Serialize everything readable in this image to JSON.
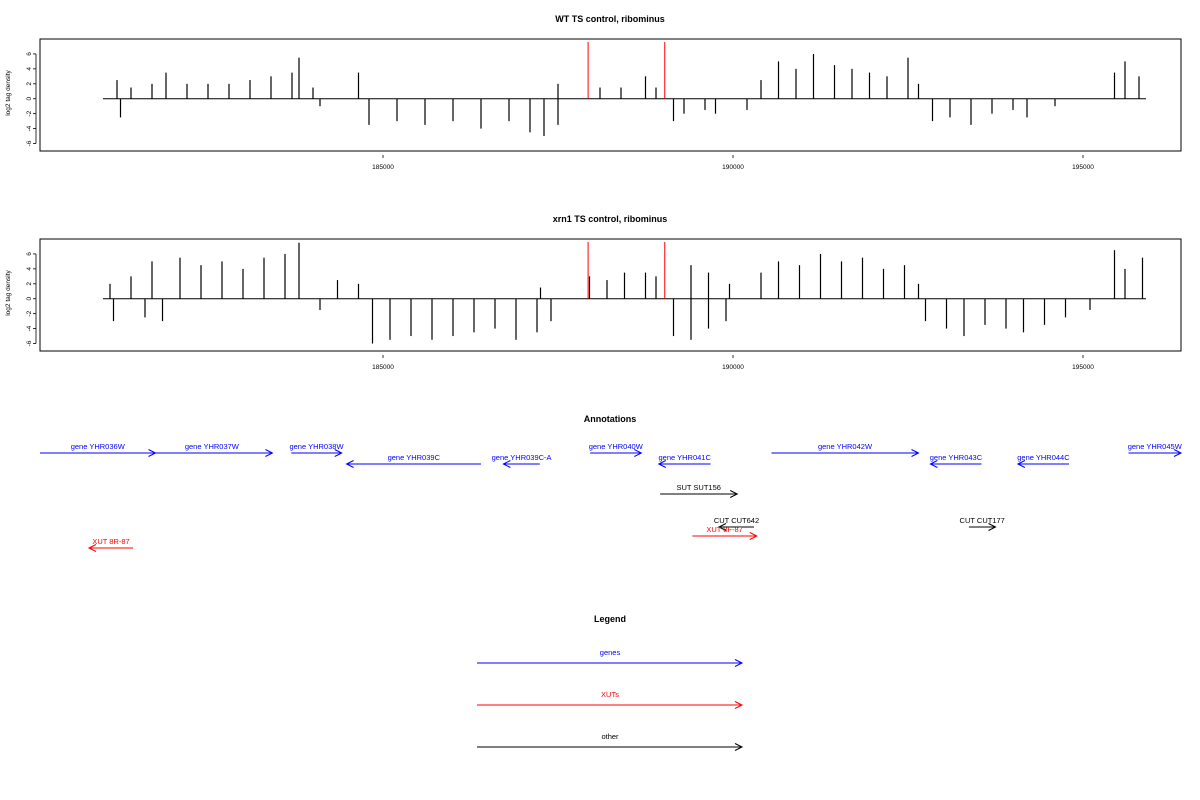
{
  "chart_data": [
    {
      "type": "bar",
      "title": "WT TS control, ribominus",
      "ylabel": "log2 tag density",
      "ylim": [
        -7,
        8
      ],
      "xlim": [
        180100,
        196400
      ],
      "y_ticks": [
        -6,
        -4,
        -2,
        0,
        2,
        4,
        6
      ],
      "x_ticks": [
        185000,
        190000,
        195000
      ],
      "x_tick_labels": [
        "185000",
        "190000",
        "195000"
      ],
      "grid": false,
      "bar_color": "#000000",
      "markers": [
        {
          "x": 187930,
          "color": "#ff0000"
        },
        {
          "x": 189025,
          "color": "#ff0000"
        }
      ],
      "series": [
        {
          "values": [
            {
              "x": 181200,
              "y": 2.5
            },
            {
              "x": 181400,
              "y": 1.5
            },
            {
              "x": 181700,
              "y": 2.0
            },
            {
              "x": 181900,
              "y": 3.5
            },
            {
              "x": 182200,
              "y": 2.0
            },
            {
              "x": 182500,
              "y": 2.0
            },
            {
              "x": 182800,
              "y": 2.0
            },
            {
              "x": 183100,
              "y": 2.5
            },
            {
              "x": 183400,
              "y": 3.0
            },
            {
              "x": 183700,
              "y": 3.5
            },
            {
              "x": 183800,
              "y": 5.5
            },
            {
              "x": 184000,
              "y": 1.5
            },
            {
              "x": 184650,
              "y": 3.5
            },
            {
              "x": 181250,
              "y": -2.5
            },
            {
              "x": 184100,
              "y": -1.0
            },
            {
              "x": 184800,
              "y": -3.5
            },
            {
              "x": 185200,
              "y": -3.0
            },
            {
              "x": 185600,
              "y": -3.5
            },
            {
              "x": 186000,
              "y": -3.0
            },
            {
              "x": 186400,
              "y": -4.0
            },
            {
              "x": 186800,
              "y": -3.0
            },
            {
              "x": 187100,
              "y": -4.5
            },
            {
              "x": 187300,
              "y": -5.0
            },
            {
              "x": 187500,
              "y": -3.5
            },
            {
              "x": 187500,
              "y": 2.0
            },
            {
              "x": 188100,
              "y": 1.5
            },
            {
              "x": 188400,
              "y": 1.5
            },
            {
              "x": 188750,
              "y": 3.0
            },
            {
              "x": 188900,
              "y": 1.5
            },
            {
              "x": 189150,
              "y": -3.0
            },
            {
              "x": 189300,
              "y": -2.0
            },
            {
              "x": 189600,
              "y": -1.5
            },
            {
              "x": 189750,
              "y": -2.0
            },
            {
              "x": 190200,
              "y": -1.5
            },
            {
              "x": 190400,
              "y": 2.5
            },
            {
              "x": 190650,
              "y": 5.0
            },
            {
              "x": 190900,
              "y": 4.0
            },
            {
              "x": 191150,
              "y": 6.0
            },
            {
              "x": 191450,
              "y": 4.5
            },
            {
              "x": 191700,
              "y": 4.0
            },
            {
              "x": 191950,
              "y": 3.5
            },
            {
              "x": 192200,
              "y": 3.0
            },
            {
              "x": 192500,
              "y": 5.5
            },
            {
              "x": 192650,
              "y": 2.0
            },
            {
              "x": 192850,
              "y": -3.0
            },
            {
              "x": 193100,
              "y": -2.5
            },
            {
              "x": 193400,
              "y": -3.5
            },
            {
              "x": 193700,
              "y": -2.0
            },
            {
              "x": 194000,
              "y": -1.5
            },
            {
              "x": 194200,
              "y": -2.5
            },
            {
              "x": 194600,
              "y": -1.0
            },
            {
              "x": 195450,
              "y": 3.5
            },
            {
              "x": 195600,
              "y": 5.0
            },
            {
              "x": 195800,
              "y": 3.0
            }
          ]
        }
      ]
    },
    {
      "type": "bar",
      "title": "xrn1 TS control, ribominus",
      "ylabel": "log2 tag density",
      "ylim": [
        -7,
        8
      ],
      "xlim": [
        180100,
        196400
      ],
      "y_ticks": [
        -6,
        -4,
        -2,
        0,
        2,
        4,
        6
      ],
      "x_ticks": [
        185000,
        190000,
        195000
      ],
      "x_tick_labels": [
        "185000",
        "190000",
        "195000"
      ],
      "grid": false,
      "bar_color": "#000000",
      "markers": [
        {
          "x": 187930,
          "color": "#ff0000"
        },
        {
          "x": 189025,
          "color": "#ff0000"
        }
      ],
      "series": [
        {
          "values": [
            {
              "x": 181100,
              "y": 2.0
            },
            {
              "x": 181400,
              "y": 3.0
            },
            {
              "x": 181700,
              "y": 5.0
            },
            {
              "x": 182100,
              "y": 5.5
            },
            {
              "x": 182400,
              "y": 4.5
            },
            {
              "x": 182700,
              "y": 5.0
            },
            {
              "x": 183000,
              "y": 4.0
            },
            {
              "x": 183300,
              "y": 5.5
            },
            {
              "x": 183600,
              "y": 6.0
            },
            {
              "x": 183800,
              "y": 7.5
            },
            {
              "x": 184350,
              "y": 2.5
            },
            {
              "x": 184650,
              "y": 2.0
            },
            {
              "x": 181150,
              "y": -3.0
            },
            {
              "x": 181600,
              "y": -2.5
            },
            {
              "x": 181850,
              "y": -3.0
            },
            {
              "x": 184100,
              "y": -1.5
            },
            {
              "x": 184850,
              "y": -6.0
            },
            {
              "x": 185100,
              "y": -5.5
            },
            {
              "x": 185400,
              "y": -5.0
            },
            {
              "x": 185700,
              "y": -5.5
            },
            {
              "x": 186000,
              "y": -5.0
            },
            {
              "x": 186300,
              "y": -4.5
            },
            {
              "x": 186600,
              "y": -4.0
            },
            {
              "x": 186900,
              "y": -5.5
            },
            {
              "x": 187200,
              "y": -4.5
            },
            {
              "x": 187400,
              "y": -3.0
            },
            {
              "x": 187250,
              "y": 1.5
            },
            {
              "x": 187950,
              "y": 3.0
            },
            {
              "x": 188200,
              "y": 2.5
            },
            {
              "x": 188450,
              "y": 3.5
            },
            {
              "x": 188750,
              "y": 3.5
            },
            {
              "x": 188900,
              "y": 3.0
            },
            {
              "x": 189150,
              "y": -5.0
            },
            {
              "x": 189400,
              "y": -5.5
            },
            {
              "x": 189650,
              "y": -4.0
            },
            {
              "x": 189900,
              "y": -3.0
            },
            {
              "x": 189400,
              "y": 4.5
            },
            {
              "x": 189650,
              "y": 3.5
            },
            {
              "x": 189950,
              "y": 2.0
            },
            {
              "x": 190400,
              "y": 3.5
            },
            {
              "x": 190650,
              "y": 5.0
            },
            {
              "x": 190950,
              "y": 4.5
            },
            {
              "x": 191250,
              "y": 6.0
            },
            {
              "x": 191550,
              "y": 5.0
            },
            {
              "x": 191850,
              "y": 5.5
            },
            {
              "x": 192150,
              "y": 4.0
            },
            {
              "x": 192450,
              "y": 4.5
            },
            {
              "x": 192650,
              "y": 2.0
            },
            {
              "x": 192750,
              "y": -3.0
            },
            {
              "x": 193050,
              "y": -4.0
            },
            {
              "x": 193300,
              "y": -5.0
            },
            {
              "x": 193600,
              "y": -3.5
            },
            {
              "x": 193900,
              "y": -4.0
            },
            {
              "x": 194150,
              "y": -4.5
            },
            {
              "x": 194450,
              "y": -3.5
            },
            {
              "x": 194750,
              "y": -2.5
            },
            {
              "x": 195100,
              "y": -1.5
            },
            {
              "x": 195450,
              "y": 6.5
            },
            {
              "x": 195600,
              "y": 4.0
            },
            {
              "x": 195850,
              "y": 5.5
            }
          ]
        }
      ]
    }
  ],
  "annotations": {
    "title": "Annotations",
    "features": [
      {
        "label": "gene YHR036W",
        "start": 180100,
        "end": 181750,
        "strand": "+",
        "row": 0,
        "color": "#0000ff"
      },
      {
        "label": "gene YHR037W",
        "start": 181690,
        "end": 183420,
        "strand": "+",
        "row": 0,
        "color": "#0000ff"
      },
      {
        "label": "gene YHR038W",
        "start": 183690,
        "end": 184410,
        "strand": "+",
        "row": 0,
        "color": "#0000ff"
      },
      {
        "label": "gene YHR039C",
        "start": 184480,
        "end": 186400,
        "strand": "-",
        "row": 1,
        "color": "#0000ff"
      },
      {
        "label": "gene YHR039C-A",
        "start": 186720,
        "end": 187240,
        "strand": "-",
        "row": 1,
        "color": "#0000ff"
      },
      {
        "label": "gene YHR040W",
        "start": 187960,
        "end": 188690,
        "strand": "+",
        "row": 0,
        "color": "#0000ff"
      },
      {
        "label": "gene YHR041C",
        "start": 188940,
        "end": 189680,
        "strand": "-",
        "row": 1,
        "color": "#0000ff"
      },
      {
        "label": "gene YHR042W",
        "start": 190550,
        "end": 192650,
        "strand": "+",
        "row": 0,
        "color": "#0000ff"
      },
      {
        "label": "gene YHR043C",
        "start": 192820,
        "end": 193550,
        "strand": "-",
        "row": 1,
        "color": "#0000ff"
      },
      {
        "label": "gene YHR044C",
        "start": 194070,
        "end": 194800,
        "strand": "-",
        "row": 1,
        "color": "#0000ff"
      },
      {
        "label": "gene YHR045W",
        "start": 195650,
        "end": 196400,
        "strand": "+",
        "row": 0,
        "color": "#0000ff"
      },
      {
        "label": "SUT SUT156",
        "start": 188960,
        "end": 190060,
        "strand": "+",
        "row": 2,
        "color": "#000000"
      },
      {
        "label": "CUT CUT642",
        "start": 189800,
        "end": 190300,
        "strand": "-",
        "row": 3,
        "color": "#000000"
      },
      {
        "label": "CUT CUT177",
        "start": 193370,
        "end": 193750,
        "strand": "+",
        "row": 3,
        "color": "#000000"
      },
      {
        "label": "XUT 8F-87",
        "start": 189420,
        "end": 190340,
        "strand": "+",
        "row": 4,
        "color": "#ff0000"
      },
      {
        "label": "XUT 8R-87",
        "start": 180800,
        "end": 181430,
        "strand": "-",
        "row": 5,
        "color": "#ff0000"
      }
    ]
  },
  "legend": {
    "title": "Legend",
    "items": [
      {
        "label": "genes",
        "color": "#0000ff"
      },
      {
        "label": "XUTs",
        "color": "#ff0000"
      },
      {
        "label": "other",
        "color": "#000000"
      }
    ]
  }
}
